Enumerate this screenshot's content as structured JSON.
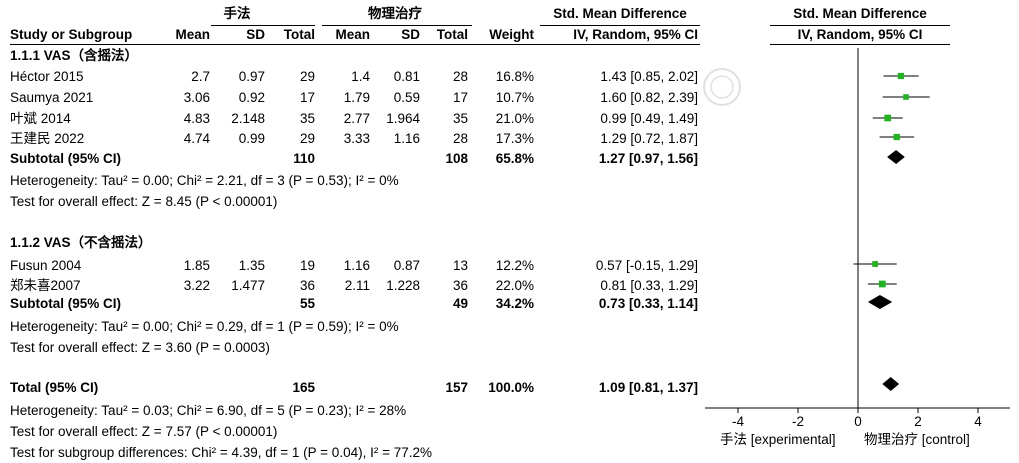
{
  "header": {
    "group_exp": "手法",
    "group_ctrl": "物理治疗",
    "smd_col": "Std. Mean Difference",
    "smd_method": "IV, Random, 95% CI",
    "plot_title": "Std. Mean Difference",
    "plot_method": "IV, Random, 95% CI",
    "col_study": "Study or Subgroup",
    "col_mean1": "Mean",
    "col_sd1": "SD",
    "col_total1": "Total",
    "col_mean2": "Mean",
    "col_sd2": "SD",
    "col_total2": "Total",
    "col_weight": "Weight"
  },
  "subgroups": [
    {
      "title": "1.1.1 VAS（含摇法）",
      "studies": [
        {
          "name": "Héctor 2015",
          "mean1": "2.7",
          "sd1": "0.97",
          "n1": "29",
          "mean2": "1.4",
          "sd2": "0.81",
          "n2": "28",
          "weight": "16.8%",
          "ci": "1.43 [0.85, 2.02]"
        },
        {
          "name": "Saumya 2021",
          "mean1": "3.06",
          "sd1": "0.92",
          "n1": "17",
          "mean2": "1.79",
          "sd2": "0.59",
          "n2": "17",
          "weight": "10.7%",
          "ci": "1.60 [0.82, 2.39]"
        },
        {
          "name": "叶斌 2014",
          "mean1": "4.83",
          "sd1": "2.148",
          "n1": "35",
          "mean2": "2.77",
          "sd2": "1.964",
          "n2": "35",
          "weight": "21.0%",
          "ci": "0.99 [0.49, 1.49]"
        },
        {
          "name": "王建民 2022",
          "mean1": "4.74",
          "sd1": "0.99",
          "n1": "29",
          "mean2": "3.33",
          "sd2": "1.16",
          "n2": "28",
          "weight": "17.3%",
          "ci": "1.29 [0.72, 1.87]"
        }
      ],
      "subtotal": {
        "label": "Subtotal (95% CI)",
        "n1": "110",
        "n2": "108",
        "weight": "65.8%",
        "ci": "1.27 [0.97, 1.56]"
      },
      "heterogeneity": "Heterogeneity: Tau² = 0.00; Chi² = 2.21, df = 3 (P = 0.53); I² = 0%",
      "overall": "Test for overall effect: Z = 8.45 (P < 0.00001)"
    },
    {
      "title": "1.1.2 VAS（不含摇法）",
      "studies": [
        {
          "name": "Fusun 2004",
          "mean1": "1.85",
          "sd1": "1.35",
          "n1": "19",
          "mean2": "1.16",
          "sd2": "0.87",
          "n2": "13",
          "weight": "12.2%",
          "ci": "0.57 [-0.15, 1.29]"
        },
        {
          "name": "郑未喜2007",
          "mean1": "3.22",
          "sd1": "1.477",
          "n1": "36",
          "mean2": "2.11",
          "sd2": "1.228",
          "n2": "36",
          "weight": "22.0%",
          "ci": "0.81 [0.33, 1.29]"
        }
      ],
      "subtotal": {
        "label": "Subtotal (95% CI)",
        "n1": "55",
        "n2": "49",
        "weight": "34.2%",
        "ci": "0.73 [0.33, 1.14]"
      },
      "heterogeneity": "Heterogeneity: Tau² = 0.00; Chi² = 0.29, df = 1 (P = 0.59); I² = 0%",
      "overall": "Test for overall effect: Z = 3.60 (P = 0.0003)"
    }
  ],
  "total": {
    "label": "Total (95% CI)",
    "n1": "165",
    "n2": "157",
    "weight": "100.0%",
    "ci": "1.09 [0.81, 1.37]",
    "heterogeneity": "Heterogeneity: Tau² = 0.03; Chi² = 6.90, df = 5 (P = 0.23); I² = 28%",
    "overall": "Test for overall effect: Z = 7.57 (P < 0.00001)",
    "subgroup_diff": "Test for subgroup differences: Chi² = 4.39, df = 1 (P = 0.04), I² = 77.2%"
  },
  "axis": {
    "ticks": [
      -4,
      -2,
      0,
      2,
      4
    ],
    "tick_labels": [
      "-4",
      "-2",
      "0",
      "2",
      "4"
    ],
    "left_label": "手法 [experimental]",
    "right_label": "物理治疗 [control]"
  },
  "watermark": {
    "text": "中華骨傷會"
  },
  "colors": {
    "study_marker": "#1fb51f",
    "diamond": "#000000",
    "line": "#000000"
  },
  "chart_data": {
    "type": "forest",
    "xlim": [
      -4,
      4
    ],
    "x_axis_ticks": [
      -4,
      -2,
      0,
      2,
      4
    ],
    "left_label": "手法 [experimental]",
    "right_label": "物理治疗 [control]",
    "studies": [
      {
        "name": "Héctor 2015",
        "smd": 1.43,
        "lo": 0.85,
        "hi": 2.02,
        "weight": 16.8
      },
      {
        "name": "Saumya 2021",
        "smd": 1.6,
        "lo": 0.82,
        "hi": 2.39,
        "weight": 10.7
      },
      {
        "name": "叶斌 2014",
        "smd": 0.99,
        "lo": 0.49,
        "hi": 1.49,
        "weight": 21.0
      },
      {
        "name": "王建民 2022",
        "smd": 1.29,
        "lo": 0.72,
        "hi": 1.87,
        "weight": 17.3
      },
      {
        "name": "Fusun 2004",
        "smd": 0.57,
        "lo": -0.15,
        "hi": 1.29,
        "weight": 12.2
      },
      {
        "name": "郑未喜2007",
        "smd": 0.81,
        "lo": 0.33,
        "hi": 1.29,
        "weight": 22.0
      }
    ],
    "summaries": [
      {
        "name": "Subtotal (95% CI)",
        "smd": 1.27,
        "lo": 0.97,
        "hi": 1.56
      },
      {
        "name": "Subtotal (95% CI)",
        "smd": 0.73,
        "lo": 0.33,
        "hi": 1.14
      },
      {
        "name": "Total (95% CI)",
        "smd": 1.09,
        "lo": 0.81,
        "hi": 1.37
      }
    ]
  }
}
